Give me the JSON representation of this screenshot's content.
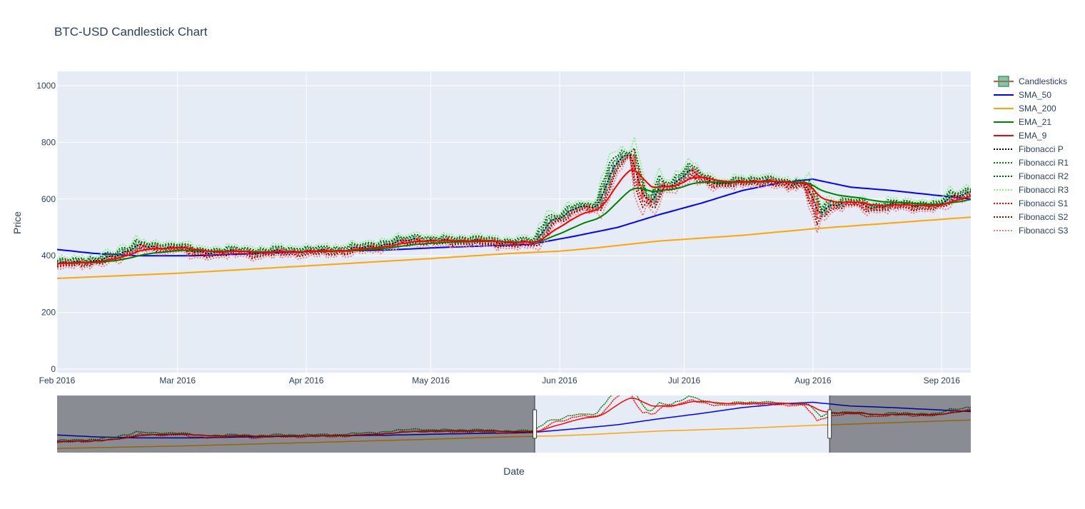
{
  "chart_data": {
    "type": "line",
    "title": "BTC-USD Candlestick Chart",
    "xlabel": "Date",
    "ylabel": "Price",
    "ylim": [
      0,
      1000
    ],
    "x_ticks": [
      "Feb 2016",
      "Mar 2016",
      "Apr 2016",
      "May 2016",
      "Jun 2016",
      "Jul 2016",
      "Aug 2016",
      "Sep 2016"
    ],
    "y_ticks": [
      0,
      200,
      400,
      600,
      800,
      1000
    ],
    "x_range": [
      "2016-02-01",
      "2016-09-08"
    ],
    "rangeslider": {
      "visible": true,
      "window_start": "2016-05-26",
      "window_end": "2016-08-05"
    },
    "grid": true,
    "legend_position": "top-right",
    "colors": {
      "plot_bg": "#E5ECF6",
      "candle_up": "#3D9970",
      "candle_down": "#FF4136",
      "sma50": "#0000FF",
      "sma200": "#FFA500",
      "ema21": "#008000",
      "ema9": "#FF0000",
      "fib_p": "#000000",
      "fib_r1": "#008000",
      "fib_r2": "#006400",
      "fib_r3": "#90EE90",
      "fib_s1": "#FF0000",
      "fib_s2": "#8B0000",
      "fib_s3": "#F08080"
    },
    "legend": [
      {
        "name": "Candlesticks",
        "color": "#3D9970",
        "style": "candle"
      },
      {
        "name": "SMA_50",
        "color": "#0000FF",
        "style": "solid"
      },
      {
        "name": "SMA_200",
        "color": "#FFA500",
        "style": "solid"
      },
      {
        "name": "EMA_21",
        "color": "#008000",
        "style": "solid"
      },
      {
        "name": "EMA_9",
        "color": "#FF0000",
        "style": "solid"
      },
      {
        "name": "Fibonacci P",
        "color": "#000000",
        "style": "dot"
      },
      {
        "name": "Fibonacci R1",
        "color": "#008000",
        "style": "dot"
      },
      {
        "name": "Fibonacci R2",
        "color": "#006400",
        "style": "dot"
      },
      {
        "name": "Fibonacci R3",
        "color": "#90EE90",
        "style": "dot"
      },
      {
        "name": "Fibonacci S1",
        "color": "#FF0000",
        "style": "dot"
      },
      {
        "name": "Fibonacci S2",
        "color": "#8B0000",
        "style": "dot"
      },
      {
        "name": "Fibonacci S3",
        "color": "#F08080",
        "style": "dot"
      }
    ],
    "close_anchors": [
      [
        "2016-02-01",
        372
      ],
      [
        "2016-02-06",
        378
      ],
      [
        "2016-02-10",
        383
      ],
      [
        "2016-02-15",
        398
      ],
      [
        "2016-02-20",
        438
      ],
      [
        "2016-02-25",
        425
      ],
      [
        "2016-03-01",
        435
      ],
      [
        "2016-03-05",
        410
      ],
      [
        "2016-03-10",
        413
      ],
      [
        "2016-03-15",
        416
      ],
      [
        "2016-03-20",
        410
      ],
      [
        "2016-03-25",
        416
      ],
      [
        "2016-04-01",
        416
      ],
      [
        "2016-04-10",
        420
      ],
      [
        "2016-04-20",
        440
      ],
      [
        "2016-04-27",
        460
      ],
      [
        "2016-05-01",
        452
      ],
      [
        "2016-05-10",
        455
      ],
      [
        "2016-05-20",
        445
      ],
      [
        "2016-05-26",
        448
      ],
      [
        "2016-05-29",
        520
      ],
      [
        "2016-06-02",
        540
      ],
      [
        "2016-06-05",
        575
      ],
      [
        "2016-06-10",
        575
      ],
      [
        "2016-06-13",
        690
      ],
      [
        "2016-06-16",
        760
      ],
      [
        "2016-06-18",
        752
      ],
      [
        "2016-06-21",
        600
      ],
      [
        "2016-06-23",
        590
      ],
      [
        "2016-06-25",
        650
      ],
      [
        "2016-06-28",
        650
      ],
      [
        "2016-07-02",
        700
      ],
      [
        "2016-07-06",
        670
      ],
      [
        "2016-07-10",
        650
      ],
      [
        "2016-07-15",
        665
      ],
      [
        "2016-07-20",
        665
      ],
      [
        "2016-07-25",
        655
      ],
      [
        "2016-07-30",
        655
      ],
      [
        "2016-08-02",
        545
      ],
      [
        "2016-08-05",
        580
      ],
      [
        "2016-08-10",
        590
      ],
      [
        "2016-08-15",
        570
      ],
      [
        "2016-08-20",
        580
      ],
      [
        "2016-08-25",
        578
      ],
      [
        "2016-08-31",
        575
      ],
      [
        "2016-09-03",
        610
      ],
      [
        "2016-09-08",
        625
      ]
    ],
    "sma50_anchors": [
      [
        "2016-02-01",
        422
      ],
      [
        "2016-02-10",
        408
      ],
      [
        "2016-02-20",
        400
      ],
      [
        "2016-03-05",
        400
      ],
      [
        "2016-03-20",
        408
      ],
      [
        "2016-04-05",
        416
      ],
      [
        "2016-04-20",
        420
      ],
      [
        "2016-05-05",
        430
      ],
      [
        "2016-05-25",
        440
      ],
      [
        "2016-06-05",
        470
      ],
      [
        "2016-06-15",
        500
      ],
      [
        "2016-06-25",
        545
      ],
      [
        "2016-07-05",
        585
      ],
      [
        "2016-07-15",
        630
      ],
      [
        "2016-07-25",
        660
      ],
      [
        "2016-08-01",
        670
      ],
      [
        "2016-08-10",
        642
      ],
      [
        "2016-08-20",
        630
      ],
      [
        "2016-09-08",
        600
      ]
    ],
    "sma200_anchors": [
      [
        "2016-02-01",
        320
      ],
      [
        "2016-03-01",
        338
      ],
      [
        "2016-04-01",
        364
      ],
      [
        "2016-05-01",
        390
      ],
      [
        "2016-05-20",
        408
      ],
      [
        "2016-06-01",
        416
      ],
      [
        "2016-06-10",
        428
      ],
      [
        "2016-06-25",
        452
      ],
      [
        "2016-07-15",
        472
      ],
      [
        "2016-08-01",
        495
      ],
      [
        "2016-09-08",
        536
      ]
    ]
  }
}
